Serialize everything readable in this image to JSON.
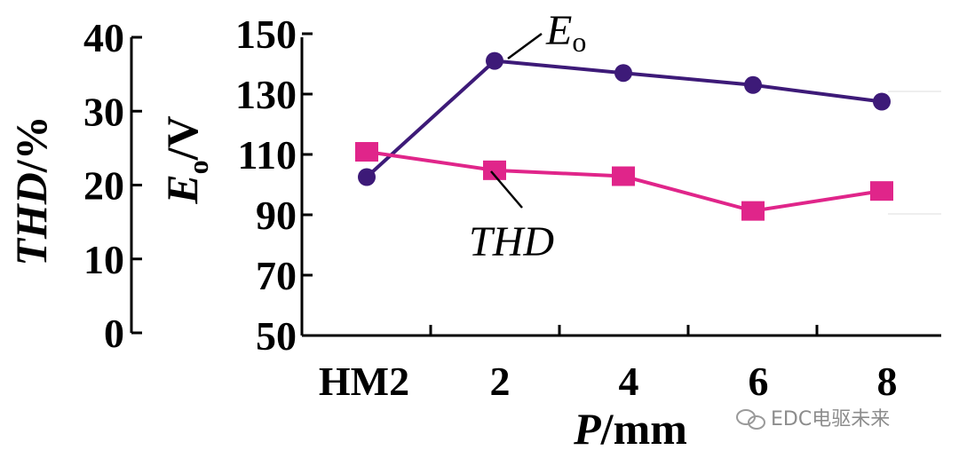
{
  "chart_data": {
    "type": "line",
    "categories": [
      "HM2",
      "2",
      "4",
      "6",
      "8"
    ],
    "xlabel": {
      "var": "P",
      "unit": "/mm"
    },
    "y_left": {
      "label": {
        "var": "THD",
        "unit": "/%"
      },
      "ticks": [
        "40",
        "30",
        "20",
        "10",
        "0"
      ],
      "ylim": [
        0,
        40
      ]
    },
    "y_right": {
      "label": {
        "var": "E",
        "sub": "o",
        "unit": "/V"
      },
      "ticks": [
        "150",
        "130",
        "110",
        "90",
        "70",
        "50"
      ],
      "ylim": [
        50,
        150
      ]
    },
    "series": [
      {
        "name": "E",
        "name_sub": "o",
        "axis": "right",
        "color": "#3d1a78",
        "marker": "circle",
        "values": [
          102.5,
          141,
          137,
          133,
          127.5
        ]
      },
      {
        "name": "THD",
        "axis": "left",
        "color": "#e0258a",
        "marker": "square",
        "values": [
          24.5,
          22,
          21.2,
          16.5,
          19.2
        ]
      }
    ],
    "grid": false
  },
  "watermark": {
    "text": "EDC电驱未来"
  }
}
